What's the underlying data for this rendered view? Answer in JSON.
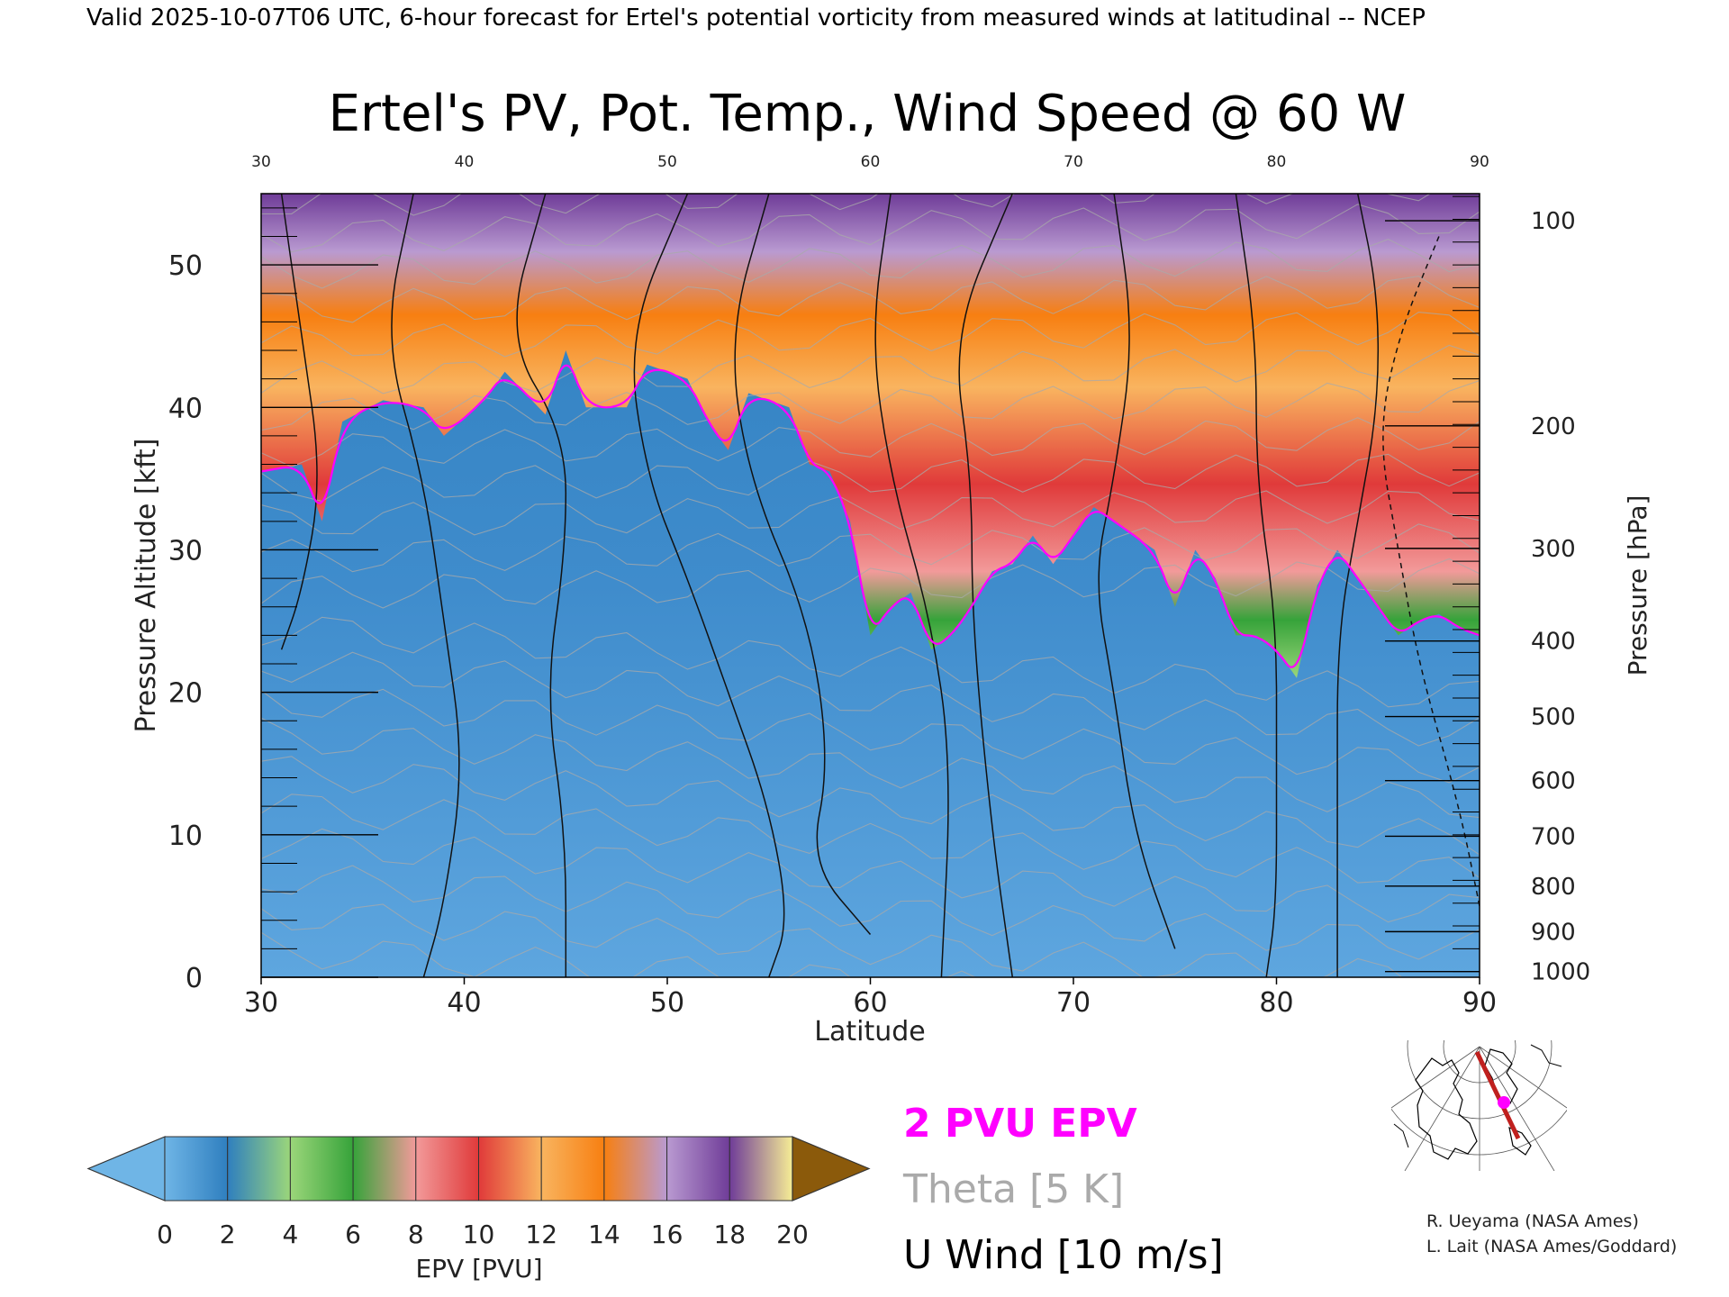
{
  "header": {
    "valid_line": "Valid 2025-10-07T06 UTC, 6-hour forecast for Ertel's potential vorticity from measured winds at latitudinal -- NCEP"
  },
  "chart_data": {
    "type": "heatmap",
    "title": "Ertel's PV, Pot. Temp., Wind Speed @ 60 W",
    "xlabel": "Latitude",
    "ylabel": "Pressure Altitude [kft]",
    "y2label": "Pressure [hPa]",
    "xlim": [
      30,
      90
    ],
    "ylim": [
      0,
      55
    ],
    "x_ticks": [
      "30",
      "40",
      "50",
      "60",
      "70",
      "80",
      "90"
    ],
    "x_ticks_top": [
      "30",
      "40",
      "50",
      "60",
      "70",
      "80",
      "90"
    ],
    "y_ticks": [
      "0",
      "10",
      "20",
      "30",
      "40",
      "50"
    ],
    "y2_ticks": [
      {
        "label": "1000",
        "kft": 0.4
      },
      {
        "label": "900",
        "kft": 3.2
      },
      {
        "label": "800",
        "kft": 6.4
      },
      {
        "label": "700",
        "kft": 9.9
      },
      {
        "label": "600",
        "kft": 13.8
      },
      {
        "label": "500",
        "kft": 18.3
      },
      {
        "label": "400",
        "kft": 23.6
      },
      {
        "label": "300",
        "kft": 30.1
      },
      {
        "label": "200",
        "kft": 38.7
      },
      {
        "label": "100",
        "kft": 53.1
      }
    ],
    "tropopause_2pvu_kft": [
      [
        30,
        35.5
      ],
      [
        32,
        36
      ],
      [
        33,
        32
      ],
      [
        34,
        39
      ],
      [
        36,
        40.5
      ],
      [
        38,
        40
      ],
      [
        39,
        38
      ],
      [
        41,
        40.5
      ],
      [
        42,
        42.5
      ],
      [
        44,
        39.5
      ],
      [
        45,
        44
      ],
      [
        46,
        40
      ],
      [
        48,
        40
      ],
      [
        49,
        43
      ],
      [
        51,
        42
      ],
      [
        52,
        39
      ],
      [
        53,
        37
      ],
      [
        54,
        41
      ],
      [
        56,
        40
      ],
      [
        57,
        36
      ],
      [
        58,
        35.5
      ],
      [
        59,
        32
      ],
      [
        60,
        24
      ],
      [
        61,
        26
      ],
      [
        62,
        27
      ],
      [
        63,
        23
      ],
      [
        64,
        24
      ],
      [
        65,
        26
      ],
      [
        66,
        28.5
      ],
      [
        67,
        29
      ],
      [
        68,
        31
      ],
      [
        69,
        29
      ],
      [
        70,
        31
      ],
      [
        71,
        33
      ],
      [
        72,
        32
      ],
      [
        74,
        30
      ],
      [
        75,
        26
      ],
      [
        76,
        30
      ],
      [
        77,
        28
      ],
      [
        78,
        24
      ],
      [
        79,
        24
      ],
      [
        80,
        23
      ],
      [
        81,
        21
      ],
      [
        82,
        27.5
      ],
      [
        83,
        30
      ],
      [
        84,
        28
      ],
      [
        85,
        26
      ],
      [
        86,
        24
      ],
      [
        87,
        25
      ],
      [
        88,
        25.5
      ],
      [
        89,
        24.5
      ],
      [
        90,
        24
      ]
    ],
    "epv_colorbar": {
      "label": "EPV [PVU]",
      "ticks": [
        "0",
        "2",
        "4",
        "6",
        "8",
        "10",
        "12",
        "14",
        "16",
        "18",
        "20"
      ],
      "colors": [
        "#6fb5e6",
        "#2f7fbf",
        "#9bd67a",
        "#36a33a",
        "#f29a9a",
        "#e03a3a",
        "#f9b45f",
        "#f77f11",
        "#b99ad1",
        "#6f3c98",
        "#f6ed95",
        "#8b5a0b"
      ]
    },
    "legend": [
      {
        "label": "2 PVU EPV",
        "color": "#ff00ff"
      },
      {
        "label": "Theta [5 K]",
        "color": "#aaaaaa"
      },
      {
        "label": "U Wind [10 m/s]",
        "color": "#000000"
      }
    ]
  },
  "credits": {
    "line1": "R. Ueyama (NASA Ames)",
    "line2": "L. Lait (NASA Ames/Goddard)"
  },
  "map_inset": {
    "track_color": "#c0201e",
    "marker_color": "#ff00ff"
  }
}
